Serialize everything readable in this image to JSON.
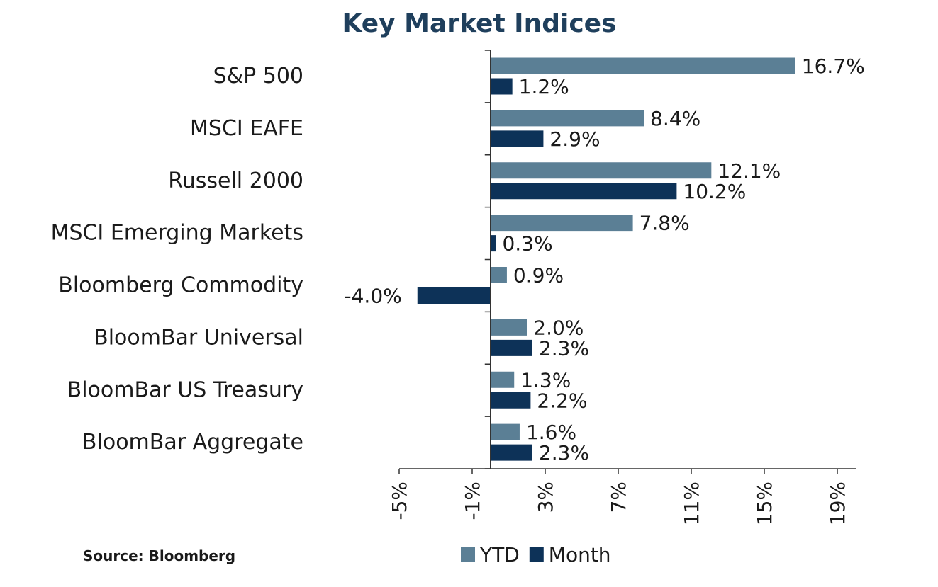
{
  "chart_data": {
    "type": "bar",
    "orientation": "horizontal",
    "title": "Key Market Indices",
    "categories": [
      "S&P 500",
      "MSCI EAFE",
      "Russell 2000",
      "MSCI Emerging Markets",
      "Bloomberg Commodity",
      "BloomBar Universal",
      "BloomBar US Treasury",
      "BloomBar Aggregate"
    ],
    "series": [
      {
        "name": "YTD",
        "color": "#5b7f95",
        "values": [
          16.7,
          8.4,
          12.1,
          7.8,
          0.9,
          2.0,
          1.3,
          1.6
        ],
        "labels": [
          "16.7%",
          "8.4%",
          "12.1%",
          "7.8%",
          "0.9%",
          "2.0%",
          "1.3%",
          "1.6%"
        ]
      },
      {
        "name": "Month",
        "color": "#0d3258",
        "values": [
          1.2,
          2.9,
          10.2,
          0.3,
          -4.0,
          2.3,
          2.2,
          2.3
        ],
        "labels": [
          "1.2%",
          "2.9%",
          "10.2%",
          "0.3%",
          "-4.0%",
          "2.3%",
          "2.2%",
          "2.3%"
        ]
      }
    ],
    "xlim": [
      -5,
      19
    ],
    "xticks": [
      -5,
      -1,
      3,
      7,
      11,
      15,
      19
    ],
    "xtick_labels": [
      "-5%",
      "-1%",
      "3%",
      "7%",
      "11%",
      "15%",
      "19%"
    ],
    "legend_position": "bottom",
    "grid": false,
    "title_color": "#1f3f5c"
  },
  "source": "Source: Bloomberg"
}
